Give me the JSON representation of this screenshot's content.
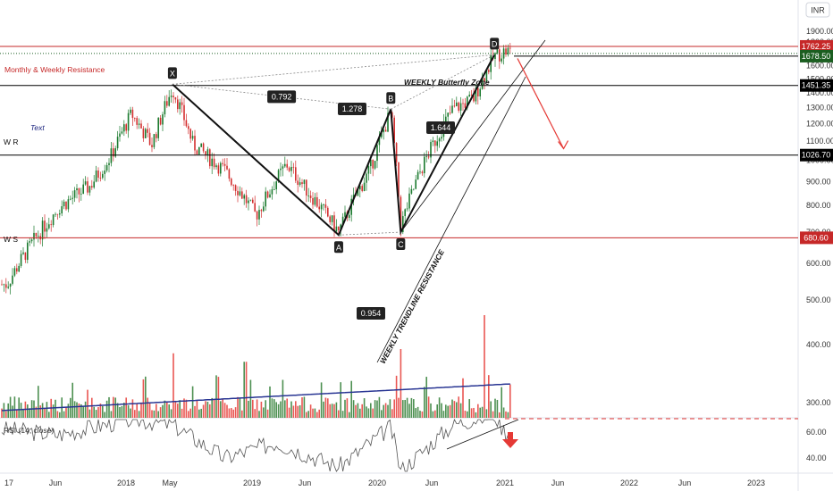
{
  "currency_button": "INR",
  "y_axis": {
    "ticks": [
      "1900.00",
      "1800.00",
      "1700.00",
      "1600.00",
      "1500.00",
      "1400.00",
      "1300.00",
      "1200.00",
      "1100.00",
      "1000.00",
      "900.00",
      "800.00",
      "700.00",
      "600.00",
      "500.00",
      "400.00",
      "300.00"
    ],
    "top_partial": "2"
  },
  "rsi_axis": {
    "ticks": [
      "60.00",
      "40.00"
    ]
  },
  "x_axis": {
    "ticks": [
      "17",
      "Jun",
      "2018",
      "May",
      "2019",
      "Jun",
      "2020",
      "Jun",
      "2021",
      "Jun",
      "2022",
      "Jun",
      "2023"
    ]
  },
  "price_badges": [
    {
      "text": "1762.25",
      "color": "#c62828",
      "value": 1762.25
    },
    {
      "text": "1678.50",
      "color": "#1b5e20",
      "value": 1678.5
    },
    {
      "text": "1451.35",
      "color": "#000000",
      "value": 1451.35
    },
    {
      "text": "1026.70",
      "color": "#000000",
      "value": 1026.7
    },
    {
      "text": "680.60",
      "color": "#c62828",
      "value": 680.6
    }
  ],
  "annotations": {
    "monthly_weekly": "Monthly & Weekly Resistance",
    "weekly_butterfly": "WEEKLY Butterfly Zone",
    "text_label": "Text",
    "wr": "W R",
    "ws": "W S",
    "trendline": "WEEKLY TRENDLINE RESISTANCE",
    "rsi": "RSI (14, close)"
  },
  "pattern": {
    "points": [
      {
        "label": "X",
        "date": "2018-05",
        "price": 1460
      },
      {
        "label": "A",
        "date": "2019-09",
        "price": 690
      },
      {
        "label": "B",
        "date": "2020-02",
        "price": 1290
      },
      {
        "label": "C",
        "date": "2020-03",
        "price": 700
      },
      {
        "label": "D",
        "date": "2020-12",
        "price": 1690
      }
    ],
    "ratios": [
      {
        "text": "1.278"
      },
      {
        "text": "0.792"
      },
      {
        "text": "1.644"
      },
      {
        "text": "0.954"
      }
    ]
  },
  "chart_data": {
    "type": "candlestick",
    "title": "",
    "ylabel": "",
    "y_scale": "log",
    "ylim": [
      250,
      2000
    ],
    "horizontal_levels": [
      1762.25,
      1678.5,
      1451.35,
      1026.7,
      680.6
    ],
    "price_path": [
      {
        "date": "2017-01",
        "price": 540
      },
      {
        "date": "2017-03",
        "price": 640
      },
      {
        "date": "2017-06",
        "price": 790
      },
      {
        "date": "2017-09",
        "price": 880
      },
      {
        "date": "2017-11",
        "price": 1020
      },
      {
        "date": "2018-01",
        "price": 1260
      },
      {
        "date": "2018-03",
        "price": 1080
      },
      {
        "date": "2018-05",
        "price": 1430
      },
      {
        "date": "2018-07",
        "price": 1080
      },
      {
        "date": "2018-10",
        "price": 950
      },
      {
        "date": "2019-01",
        "price": 760
      },
      {
        "date": "2019-04",
        "price": 980
      },
      {
        "date": "2019-06",
        "price": 860
      },
      {
        "date": "2019-09",
        "price": 700
      },
      {
        "date": "2019-12",
        "price": 950
      },
      {
        "date": "2020-02",
        "price": 1270
      },
      {
        "date": "2020-03",
        "price": 720
      },
      {
        "date": "2020-05",
        "price": 960
      },
      {
        "date": "2020-08",
        "price": 1290
      },
      {
        "date": "2020-10",
        "price": 1360
      },
      {
        "date": "2020-12",
        "price": 1680
      },
      {
        "date": "2021-01",
        "price": 1720
      }
    ],
    "volume_peaks": [
      {
        "date": "2018-05",
        "relative": 0.55
      },
      {
        "date": "2018-12",
        "relative": 0.45
      },
      {
        "date": "2020-03",
        "relative": 0.6
      },
      {
        "date": "2020-11",
        "relative": 1.0
      }
    ],
    "rsi_path": [
      {
        "date": "2017-01",
        "value": 62
      },
      {
        "date": "2017-06",
        "value": 58
      },
      {
        "date": "2018-01",
        "value": 70
      },
      {
        "date": "2018-05",
        "value": 66
      },
      {
        "date": "2018-10",
        "value": 40
      },
      {
        "date": "2019-03",
        "value": 52
      },
      {
        "date": "2019-09",
        "value": 33
      },
      {
        "date": "2020-02",
        "value": 64
      },
      {
        "date": "2020-03",
        "value": 30
      },
      {
        "date": "2020-08",
        "value": 66
      },
      {
        "date": "2020-12",
        "value": 74
      },
      {
        "date": "2021-01",
        "value": 60
      }
    ],
    "forecast": {
      "from": {
        "date": "2021-01",
        "price": 1660
      },
      "to": {
        "date": "2021-06",
        "price": 1060
      }
    }
  }
}
